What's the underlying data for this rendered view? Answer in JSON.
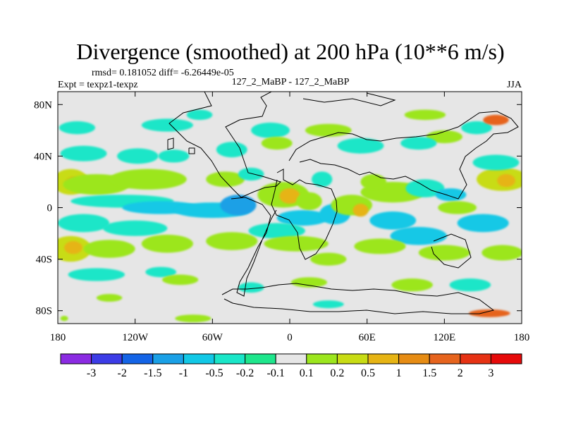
{
  "chart_data": {
    "type": "heatmap",
    "title": "Divergence (smoothed) at 200 hPa (10**6 m/s)",
    "stats_line": "rmsd= 0.181052 diff= -6.26449e-05",
    "expt_label": "Expt = texpz1-texpz",
    "center_label": "127_2_MaBP - 127_2_MaBP",
    "season": "JJA",
    "x_ticks": [
      {
        "lon": -180,
        "label": "180"
      },
      {
        "lon": -120,
        "label": "120W"
      },
      {
        "lon": -60,
        "label": "60W"
      },
      {
        "lon": 0,
        "label": "0"
      },
      {
        "lon": 60,
        "label": "60E"
      },
      {
        "lon": 120,
        "label": "120E"
      },
      {
        "lon": 180,
        "label": "180"
      }
    ],
    "y_ticks": [
      {
        "lat": 80,
        "label": "80N"
      },
      {
        "lat": 40,
        "label": "40N"
      },
      {
        "lat": 0,
        "label": "0"
      },
      {
        "lat": -40,
        "label": "40S"
      },
      {
        "lat": -80,
        "label": "80S"
      }
    ],
    "xlim": [
      -180,
      180
    ],
    "ylim": [
      -90,
      90
    ],
    "colorbar": {
      "labels": [
        "-3",
        "-2",
        "-1.5",
        "-1",
        "-0.5",
        "-0.2",
        "-0.1",
        "0.1",
        "0.2",
        "0.5",
        "1",
        "1.5",
        "2",
        "3"
      ],
      "colors": [
        "#8b2be2",
        "#3c3ce6",
        "#1464e6",
        "#1aa0e6",
        "#12c8e6",
        "#1ae6c8",
        "#1ee68c",
        "#e6e6e6",
        "#9ce61e",
        "#c8dc14",
        "#e6b414",
        "#e68c14",
        "#e6641e",
        "#e63214",
        "#e60a0a"
      ]
    },
    "blobs": [
      {
        "lon": -170,
        "lat": 20,
        "rlon": 14,
        "rlat": 10,
        "level": 9
      },
      {
        "lon": -168,
        "lat": 19,
        "rlon": 6,
        "rlat": 5,
        "level": 10
      },
      {
        "lon": -150,
        "lat": 18,
        "rlon": 26,
        "rlat": 8,
        "level": 8
      },
      {
        "lon": -110,
        "lat": 22,
        "rlon": 30,
        "rlat": 8,
        "level": 8
      },
      {
        "lon": -118,
        "lat": 40,
        "rlon": 16,
        "rlat": 6,
        "level": 5
      },
      {
        "lon": -160,
        "lat": 42,
        "rlon": 18,
        "rlat": 6,
        "level": 5
      },
      {
        "lon": -165,
        "lat": 62,
        "rlon": 14,
        "rlat": 5,
        "level": 5
      },
      {
        "lon": -95,
        "lat": 64,
        "rlon": 20,
        "rlat": 5,
        "level": 5
      },
      {
        "lon": -70,
        "lat": 72,
        "rlon": 10,
        "rlat": 4,
        "level": 5
      },
      {
        "lon": -130,
        "lat": 5,
        "rlon": 40,
        "rlat": 5,
        "level": 5
      },
      {
        "lon": -100,
        "lat": 0,
        "rlon": 30,
        "rlat": 5,
        "level": 4
      },
      {
        "lon": -60,
        "lat": -2,
        "rlon": 30,
        "rlat": 6,
        "level": 4
      },
      {
        "lon": -40,
        "lat": 2,
        "rlon": 14,
        "rlat": 8,
        "level": 3
      },
      {
        "lon": -160,
        "lat": -12,
        "rlon": 20,
        "rlat": 7,
        "level": 5
      },
      {
        "lon": -120,
        "lat": -16,
        "rlon": 25,
        "rlat": 6,
        "level": 5
      },
      {
        "lon": -170,
        "lat": -32,
        "rlon": 16,
        "rlat": 10,
        "level": 9
      },
      {
        "lon": -168,
        "lat": -31,
        "rlon": 7,
        "rlat": 5,
        "level": 10
      },
      {
        "lon": -140,
        "lat": -32,
        "rlon": 20,
        "rlat": 7,
        "level": 8
      },
      {
        "lon": -95,
        "lat": -28,
        "rlon": 20,
        "rlat": 7,
        "level": 8
      },
      {
        "lon": -45,
        "lat": -26,
        "rlon": 20,
        "rlat": 7,
        "level": 8
      },
      {
        "lon": -150,
        "lat": -52,
        "rlon": 22,
        "rlat": 5,
        "level": 5
      },
      {
        "lon": -100,
        "lat": -50,
        "rlon": 12,
        "rlat": 4,
        "level": 5
      },
      {
        "lon": -85,
        "lat": -56,
        "rlon": 14,
        "rlat": 4,
        "level": 8
      },
      {
        "lon": -75,
        "lat": -86,
        "rlon": 14,
        "rlat": 3,
        "level": 8
      },
      {
        "lon": -175,
        "lat": -86,
        "rlon": 3,
        "rlat": 2,
        "level": 8
      },
      {
        "lon": -45,
        "lat": 45,
        "rlon": 12,
        "rlat": 6,
        "level": 5
      },
      {
        "lon": -15,
        "lat": 60,
        "rlon": 15,
        "rlat": 6,
        "level": 5
      },
      {
        "lon": -50,
        "lat": 22,
        "rlon": 15,
        "rlat": 6,
        "level": 8
      },
      {
        "lon": -30,
        "lat": 26,
        "rlon": 10,
        "rlat": 5,
        "level": 5
      },
      {
        "lon": -5,
        "lat": 10,
        "rlon": 20,
        "rlat": 10,
        "level": 8
      },
      {
        "lon": 0,
        "lat": 9,
        "rlon": 8,
        "rlat": 6,
        "level": 10
      },
      {
        "lon": 15,
        "lat": 5,
        "rlon": 10,
        "rlat": 7,
        "level": 8
      },
      {
        "lon": 10,
        "lat": -8,
        "rlon": 20,
        "rlat": 6,
        "level": 4
      },
      {
        "lon": -10,
        "lat": -18,
        "rlon": 22,
        "rlat": 6,
        "level": 5
      },
      {
        "lon": 5,
        "lat": -28,
        "rlon": 25,
        "rlat": 6,
        "level": 8
      },
      {
        "lon": 30,
        "lat": -40,
        "rlon": 14,
        "rlat": 5,
        "level": 8
      },
      {
        "lon": 15,
        "lat": -58,
        "rlon": 14,
        "rlat": 4,
        "level": 8
      },
      {
        "lon": -30,
        "lat": -62,
        "rlon": 10,
        "rlat": 4,
        "level": 5
      },
      {
        "lon": 35,
        "lat": -5,
        "rlon": 12,
        "rlat": 8,
        "level": 4
      },
      {
        "lon": 25,
        "lat": 22,
        "rlon": 8,
        "rlat": 6,
        "level": 5
      },
      {
        "lon": 48,
        "lat": 2,
        "rlon": 16,
        "rlat": 8,
        "level": 8
      },
      {
        "lon": 55,
        "lat": -2,
        "rlon": 6,
        "rlat": 5,
        "level": 10
      },
      {
        "lon": 80,
        "lat": -10,
        "rlon": 18,
        "rlat": 7,
        "level": 4
      },
      {
        "lon": 100,
        "lat": -22,
        "rlon": 22,
        "rlat": 7,
        "level": 4
      },
      {
        "lon": 70,
        "lat": -30,
        "rlon": 20,
        "rlat": 6,
        "level": 8
      },
      {
        "lon": 120,
        "lat": -35,
        "rlon": 20,
        "rlat": 6,
        "level": 8
      },
      {
        "lon": 150,
        "lat": -12,
        "rlon": 20,
        "rlat": 7,
        "level": 4
      },
      {
        "lon": 165,
        "lat": -35,
        "rlon": 16,
        "rlat": 6,
        "level": 8
      },
      {
        "lon": 80,
        "lat": 12,
        "rlon": 25,
        "rlat": 8,
        "level": 8
      },
      {
        "lon": 65,
        "lat": 20,
        "rlon": 10,
        "rlat": 6,
        "level": 8
      },
      {
        "lon": 105,
        "lat": 15,
        "rlon": 15,
        "rlat": 7,
        "level": 5
      },
      {
        "lon": 125,
        "lat": 10,
        "rlon": 12,
        "rlat": 5,
        "level": 4
      },
      {
        "lon": 130,
        "lat": 0,
        "rlon": 15,
        "rlat": 5,
        "level": 8
      },
      {
        "lon": 165,
        "lat": 22,
        "rlon": 20,
        "rlat": 9,
        "level": 9
      },
      {
        "lon": 168,
        "lat": 21,
        "rlon": 7,
        "rlat": 5,
        "level": 10
      },
      {
        "lon": 160,
        "lat": 35,
        "rlon": 18,
        "rlat": 6,
        "level": 5
      },
      {
        "lon": 145,
        "lat": 62,
        "rlon": 12,
        "rlat": 5,
        "level": 5
      },
      {
        "lon": 120,
        "lat": 55,
        "rlon": 14,
        "rlat": 5,
        "level": 8
      },
      {
        "lon": 100,
        "lat": 50,
        "rlon": 14,
        "rlat": 5,
        "level": 5
      },
      {
        "lon": 55,
        "lat": 48,
        "rlon": 18,
        "rlat": 6,
        "level": 5
      },
      {
        "lon": 30,
        "lat": 60,
        "rlon": 18,
        "rlat": 5,
        "level": 8
      },
      {
        "lon": -10,
        "lat": 50,
        "rlon": 12,
        "rlat": 5,
        "level": 8
      },
      {
        "lon": -90,
        "lat": 40,
        "rlon": 12,
        "rlat": 5,
        "level": 5
      },
      {
        "lon": 105,
        "lat": 72,
        "rlon": 16,
        "rlat": 4,
        "level": 8
      },
      {
        "lon": 160,
        "lat": 68,
        "rlon": 10,
        "rlat": 4,
        "level": 12
      },
      {
        "lon": 140,
        "lat": -60,
        "rlon": 16,
        "rlat": 5,
        "level": 5
      },
      {
        "lon": 95,
        "lat": -60,
        "rlon": 16,
        "rlat": 5,
        "level": 8
      },
      {
        "lon": 155,
        "lat": -82,
        "rlon": 16,
        "rlat": 3,
        "level": 12
      },
      {
        "lon": 30,
        "lat": -75,
        "rlon": 12,
        "rlat": 3,
        "level": 5
      },
      {
        "lon": -140,
        "lat": -70,
        "rlon": 10,
        "rlat": 3,
        "level": 8
      }
    ]
  }
}
